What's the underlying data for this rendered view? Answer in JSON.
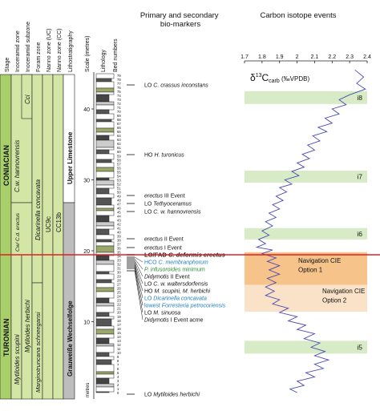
{
  "headers": {
    "stage": "Stage",
    "inoceramid_zone": "Inoceramid zone",
    "inoceramid_subzone": "Inoceramid subzone",
    "foram_zone": "Foram zone",
    "nanno_uc": "Nanno zone (UC)",
    "nanno_cc": "Nanno zone (CC)",
    "lithostratigraphy": "Lithostratigraphy",
    "scale": "Scale (metres)",
    "lithology": "Lithology",
    "bed_numbers": "Bed numbers",
    "biomarkers_title": "Primary and secondary bio-markers",
    "isotope_title": "Carbon isotope events"
  },
  "stages": {
    "coniacian": "CONIACIAN",
    "turonian": "TURONIAN"
  },
  "zones": {
    "cw_hannovrensis": "C.w. hannovrensis",
    "cd_erectus": "Cw/ C.d. erectus",
    "cci": "Cci",
    "m_scupini": "Mytiloides scupini",
    "m_herbichi": "Mytiloides herbichi",
    "d_concavata": "Dicarinella concavata",
    "m_schneegansi": "Marginotruncana schneegansi",
    "uc9c": "UC9c",
    "cc13b": "CC13b",
    "upper_limestone": "Upper Limestone",
    "grauwesse": "Grauweiße Wechselfolge"
  },
  "scale_ticks": [
    "40",
    "30",
    "20",
    "10"
  ],
  "scale_unit": "metres",
  "bed_numbers": [
    "79",
    "78",
    "77",
    "76",
    "75",
    "74",
    "73",
    "72",
    "71",
    "70",
    "69",
    "68",
    "67",
    "66",
    "65",
    "64",
    "63",
    "62",
    "61",
    "60",
    "59",
    "58",
    "57",
    "56",
    "55",
    "54",
    "53",
    "52",
    "51",
    "50",
    "49",
    "48",
    "47",
    "46",
    "45",
    "44",
    "43",
    "42",
    "41",
    "40",
    "39",
    "38",
    "37",
    "36",
    "35",
    "34",
    "33",
    "32",
    "31",
    "30",
    "29",
    "28",
    "27",
    "26",
    "25",
    "24",
    "23",
    "22",
    "21",
    "20",
    "19",
    "18",
    "17",
    "16",
    "15",
    "14",
    "13",
    "12",
    "11",
    "10",
    "9",
    "8",
    "7",
    "6",
    "5",
    "4",
    "3",
    "2",
    "1",
    "0"
  ],
  "markers": [
    {
      "id": "m1",
      "prefix": "LO ",
      "species": "C. crassus inconstans",
      "suffix": ""
    },
    {
      "id": "m2",
      "prefix": "HO ",
      "species": "H. turonicus",
      "suffix": ""
    },
    {
      "id": "m3",
      "prefix": "",
      "species": "erectus",
      "suffix": " III Event"
    },
    {
      "id": "m4",
      "prefix": "LO ",
      "species": "Tethyoceramus",
      "suffix": ""
    },
    {
      "id": "m5",
      "prefix": "LO ",
      "species": "C. w. hannovrensis",
      "suffix": ""
    },
    {
      "id": "m6",
      "prefix": "",
      "species": "erectus",
      "suffix": " II Event"
    },
    {
      "id": "m7",
      "prefix": "",
      "species": "erectus",
      "suffix": " I Event"
    },
    {
      "id": "m8",
      "prefix": "LO/FAD ",
      "species": "C. deformis erectus",
      "suffix": ""
    },
    {
      "id": "m9",
      "prefix": "HCO ",
      "species": "C. membranphorum",
      "suffix": ""
    },
    {
      "id": "m10",
      "prefix": "",
      "species": "P. infusoroides",
      "suffix": " minimum"
    },
    {
      "id": "m11",
      "prefix": "",
      "species": "Didymotis",
      "suffix": " II Event"
    },
    {
      "id": "m12",
      "prefix": "LO ",
      "species": "C. w. waltersdorfensis",
      "suffix": ""
    },
    {
      "id": "m13",
      "prefix": "HO ",
      "species": "M. scupini, M. herbichi",
      "suffix": ""
    },
    {
      "id": "m14",
      "prefix": "LO ",
      "species": "Dicarinella concavata",
      "suffix": ""
    },
    {
      "id": "m15",
      "prefix": "lowest ",
      "species": "Forresteria petrocoriensis",
      "suffix": ""
    },
    {
      "id": "m16",
      "prefix": "LO ",
      "species": "M. sinuosa",
      "suffix": ""
    },
    {
      "id": "m17",
      "prefix": "",
      "species": "Didymotis",
      "suffix": " I Event acme"
    },
    {
      "id": "m18",
      "prefix": "LO ",
      "species": "Mytiloides herbichi",
      "suffix": ""
    }
  ],
  "colors": {
    "green_dark": "#a9cf6a",
    "green_light": "#d3e6a6",
    "grey": "#bdbdbd",
    "band_green": "#d7ecc6",
    "band_orange": "#f6c48a",
    "band_peach": "#f9e2c8",
    "curve": "#4a4ab0",
    "boundary": "#e02020",
    "blue_text": "#1e7fc0",
    "green_text": "#2e8b3a"
  },
  "isotope_events": {
    "i8": "i8",
    "i7": "i7",
    "i6": "i6",
    "i5": "i5",
    "nav1_line1": "Navigation CIE",
    "nav1_line2": "Option 1",
    "nav2_line1": "Navigation CIE",
    "nav2_line2": "Option 2"
  },
  "isotope_axis_title": "δ13Ccarb (‰VPDB)",
  "chart_data": {
    "type": "line",
    "title": "Carbon isotope events",
    "xlabel": "δ13Ccarb (‰VPDB)",
    "ylabel": "Scale (metres)",
    "xlim": [
      1.7,
      2.4
    ],
    "ylim": [
      0,
      45
    ],
    "x_ticks": [
      "1.7",
      "1.8",
      "1.9",
      "2",
      "2.1",
      "2.2",
      "2.3",
      "2.4"
    ],
    "series": [
      {
        "points": [
          [
            2.33,
            45.5
          ],
          [
            2.38,
            44.5
          ],
          [
            2.34,
            43.6
          ],
          [
            2.39,
            42.8
          ],
          [
            2.3,
            42.0
          ],
          [
            2.24,
            41.3
          ],
          [
            2.28,
            40.6
          ],
          [
            2.2,
            40.0
          ],
          [
            2.24,
            39.3
          ],
          [
            2.16,
            38.7
          ],
          [
            2.2,
            38.0
          ],
          [
            2.12,
            37.4
          ],
          [
            2.17,
            36.8
          ],
          [
            2.09,
            36.2
          ],
          [
            2.13,
            35.5
          ],
          [
            2.06,
            34.9
          ],
          [
            2.1,
            34.2
          ],
          [
            2.03,
            33.6
          ],
          [
            2.07,
            33.0
          ],
          [
            2.0,
            32.4
          ],
          [
            2.04,
            31.8
          ],
          [
            1.97,
            31.2
          ],
          [
            2.01,
            30.6
          ],
          [
            1.93,
            30.0
          ],
          [
            1.97,
            29.4
          ],
          [
            1.9,
            28.9
          ],
          [
            1.94,
            28.3
          ],
          [
            1.88,
            27.7
          ],
          [
            1.92,
            27.1
          ],
          [
            1.86,
            26.5
          ],
          [
            1.9,
            25.9
          ],
          [
            1.84,
            25.3
          ],
          [
            1.88,
            24.7
          ],
          [
            1.82,
            24.1
          ],
          [
            1.86,
            23.5
          ],
          [
            1.8,
            22.8
          ],
          [
            1.84,
            22.2
          ],
          [
            1.78,
            21.6
          ],
          [
            1.82,
            21.0
          ],
          [
            1.77,
            20.5
          ],
          [
            1.86,
            20.1
          ],
          [
            1.8,
            19.6
          ],
          [
            1.88,
            19.0
          ],
          [
            1.83,
            18.5
          ],
          [
            1.9,
            17.9
          ],
          [
            1.84,
            17.3
          ],
          [
            1.9,
            16.7
          ],
          [
            1.83,
            16.1
          ],
          [
            1.88,
            15.5
          ],
          [
            1.82,
            14.9
          ],
          [
            1.87,
            14.3
          ],
          [
            1.82,
            13.7
          ],
          [
            1.9,
            13.1
          ],
          [
            1.86,
            12.5
          ],
          [
            1.95,
            11.9
          ],
          [
            1.9,
            11.3
          ],
          [
            2.0,
            10.7
          ],
          [
            1.95,
            10.1
          ],
          [
            2.05,
            9.5
          ],
          [
            2.0,
            8.9
          ],
          [
            2.1,
            8.3
          ],
          [
            2.04,
            7.6
          ],
          [
            2.13,
            7.0
          ],
          [
            2.08,
            6.4
          ],
          [
            2.16,
            5.8
          ],
          [
            2.1,
            5.2
          ],
          [
            2.18,
            4.6
          ],
          [
            2.1,
            4.0
          ],
          [
            2.15,
            3.4
          ],
          [
            2.05,
            2.8
          ],
          [
            2.1,
            2.2
          ],
          [
            2.0,
            1.6
          ],
          [
            2.04,
            1.0
          ],
          [
            1.96,
            0.5
          ],
          [
            2.0,
            0.0
          ]
        ]
      }
    ]
  }
}
